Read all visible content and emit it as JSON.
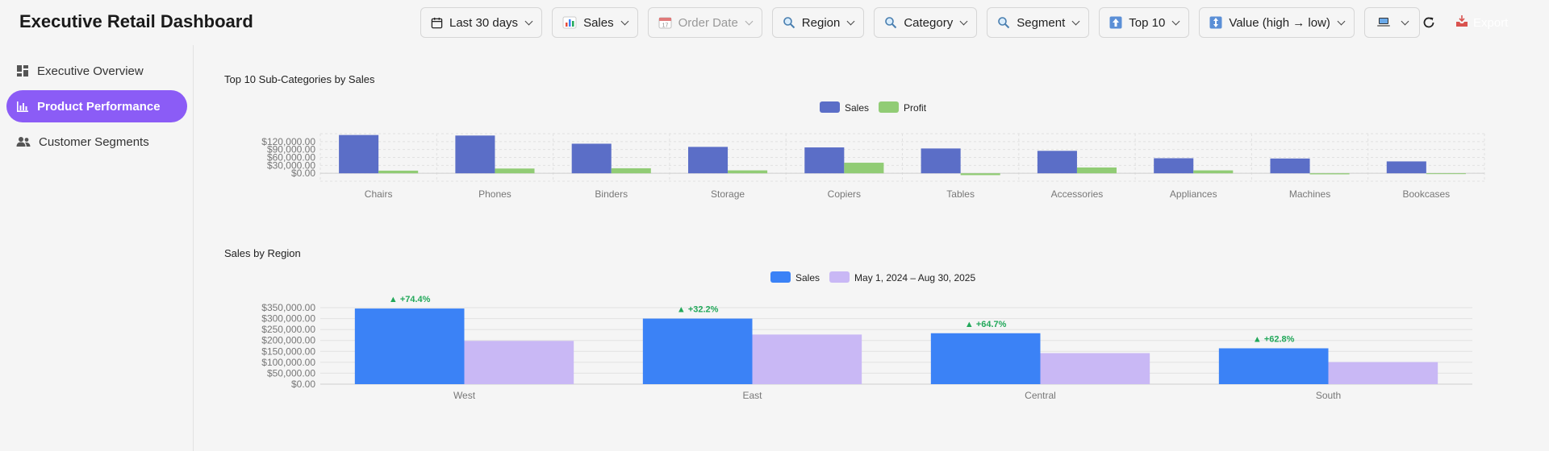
{
  "app": {
    "title": "Executive Retail Dashboard"
  },
  "filters": [
    {
      "name": "date-range-filter",
      "icon": "calendar-icon",
      "label": "Last 30 days",
      "disabled": false
    },
    {
      "name": "metric-filter",
      "icon": "bar-chart-icon",
      "label": "Sales",
      "disabled": false
    },
    {
      "name": "date-field-filter",
      "icon": "calendar-icon",
      "label": "Order Date",
      "disabled": true
    },
    {
      "name": "region-filter",
      "icon": "search-icon",
      "label": "Region",
      "disabled": false
    },
    {
      "name": "category-filter",
      "icon": "search-icon",
      "label": "Category",
      "disabled": false
    },
    {
      "name": "segment-filter",
      "icon": "search-icon",
      "label": "Segment",
      "disabled": false
    },
    {
      "name": "top-n-filter",
      "icon": "top-arrow-icon",
      "label": "Top 10",
      "disabled": false
    },
    {
      "name": "sort-filter",
      "icon": "sort-arrows-icon",
      "label": "Value (high → low)",
      "disabled": false
    },
    {
      "name": "device-filter",
      "icon": "laptop-icon",
      "label": "",
      "disabled": false
    }
  ],
  "toolbar": {
    "export_label": "Export",
    "refresh_icon": "refresh-icon",
    "export_icon": "inbox-tray-icon"
  },
  "sidebar": {
    "items": [
      {
        "label": "Executive Overview",
        "icon": "dashboard-icon",
        "active": false
      },
      {
        "label": "Product Performance",
        "icon": "bar-chart-icon",
        "active": true
      },
      {
        "label": "Customer Segments",
        "icon": "users-icon",
        "active": false
      }
    ]
  },
  "colors": {
    "accent": "#8b5cf6",
    "sales_top": "#5b6ec7",
    "profit": "#91cc75",
    "sales_region": "#3b82f6",
    "compare_region": "#c9b8f5",
    "delta_positive": "#22a85a"
  },
  "chart_data": [
    {
      "type": "bar",
      "title": "Top 10 Sub-Categories by Sales",
      "categories": [
        "Chairs",
        "Phones",
        "Binders",
        "Storage",
        "Copiers",
        "Tables",
        "Accessories",
        "Appliances",
        "Machines",
        "Bookcases"
      ],
      "series": [
        {
          "name": "Sales",
          "values": [
            145000,
            143000,
            112000,
            100000,
            98000,
            94000,
            85000,
            57000,
            56000,
            45000
          ]
        },
        {
          "name": "Profit",
          "values": [
            10000,
            18000,
            19000,
            11000,
            40000,
            -7000,
            22000,
            11000,
            -4000,
            -3000
          ]
        }
      ],
      "yticks": [
        "$120,000.00",
        "$90,000.00",
        "$60,000.00",
        "$30,000.00",
        "$0.00"
      ],
      "ylim": [
        -30000,
        150000
      ],
      "grid": true,
      "legend": "top-center"
    },
    {
      "type": "bar",
      "title": "Sales by Region",
      "categories": [
        "West",
        "East",
        "Central",
        "South"
      ],
      "series": [
        {
          "name": "Sales",
          "values": [
            346000,
            300000,
            233000,
            164000
          ]
        },
        {
          "name": "May 1, 2024 – Aug 30, 2025",
          "values": [
            198000,
            227000,
            142000,
            101000
          ]
        }
      ],
      "annotations": [
        "▲ +74.4%",
        "▲ +32.2%",
        "▲ +64.7%",
        "▲ +62.8%"
      ],
      "yticks": [
        "$350,000.00",
        "$300,000.00",
        "$250,000.00",
        "$200,000.00",
        "$150,000.00",
        "$100,000.00",
        "$50,000.00",
        "$0.00"
      ],
      "ylim": [
        0,
        350000
      ],
      "grid": true,
      "legend": "top-center"
    }
  ]
}
